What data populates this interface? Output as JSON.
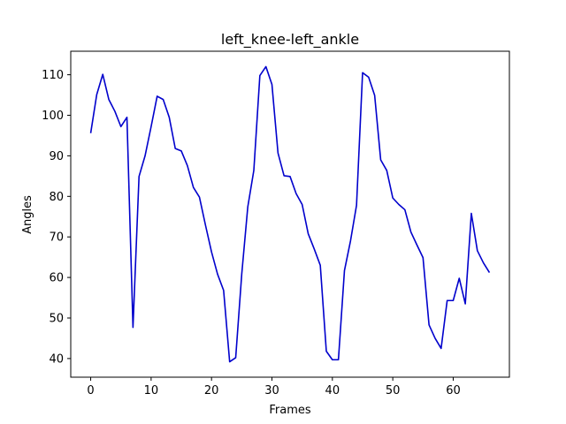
{
  "chart_data": {
    "type": "line",
    "title": "left_knee-left_ankle",
    "xlabel": "Frames",
    "ylabel": "Angles",
    "xlim": [
      -3.3,
      69.3
    ],
    "ylim": [
      35.4,
      115.8
    ],
    "xticks": [
      0,
      10,
      20,
      30,
      40,
      50,
      60
    ],
    "yticks": [
      40,
      50,
      60,
      70,
      80,
      90,
      100,
      110
    ],
    "grid": false,
    "legend": "none",
    "series": [
      {
        "color": "#0000cc",
        "x": [
          0,
          1,
          2,
          3,
          4,
          5,
          6,
          7,
          8,
          9,
          10,
          11,
          12,
          13,
          14,
          15,
          16,
          17,
          18,
          19,
          20,
          21,
          22,
          23,
          24,
          25,
          26,
          27,
          28,
          29,
          30,
          31,
          32,
          33,
          34,
          35,
          36,
          37,
          38,
          39,
          40,
          41,
          42,
          43,
          44,
          45,
          46,
          47,
          48,
          49,
          50,
          51,
          52,
          53,
          54,
          55,
          56,
          57,
          58,
          59,
          60,
          61,
          62,
          63,
          64,
          65,
          66
        ],
        "y": [
          95.6,
          105.1,
          110.1,
          103.9,
          101.0,
          97.2,
          99.5,
          47.7,
          84.9,
          90.0,
          97.2,
          104.7,
          103.9,
          99.5,
          91.8,
          91.2,
          87.6,
          82.2,
          79.8,
          72.9,
          66.3,
          60.8,
          56.8,
          39.2,
          40.2,
          60.8,
          77.4,
          86.4,
          109.8,
          112.0,
          107.6,
          90.7,
          85.1,
          84.9,
          80.7,
          78.0,
          70.8,
          67.0,
          63.0,
          41.8,
          39.7,
          39.7,
          61.7,
          69.0,
          77.8,
          110.5,
          109.4,
          104.9,
          89.0,
          86.4,
          79.6,
          78.0,
          76.7,
          71.2,
          68.0,
          64.9,
          48.3,
          45.0,
          42.5,
          54.3,
          54.3,
          59.8,
          53.5,
          75.8,
          66.6,
          63.6,
          61.2
        ]
      }
    ]
  }
}
